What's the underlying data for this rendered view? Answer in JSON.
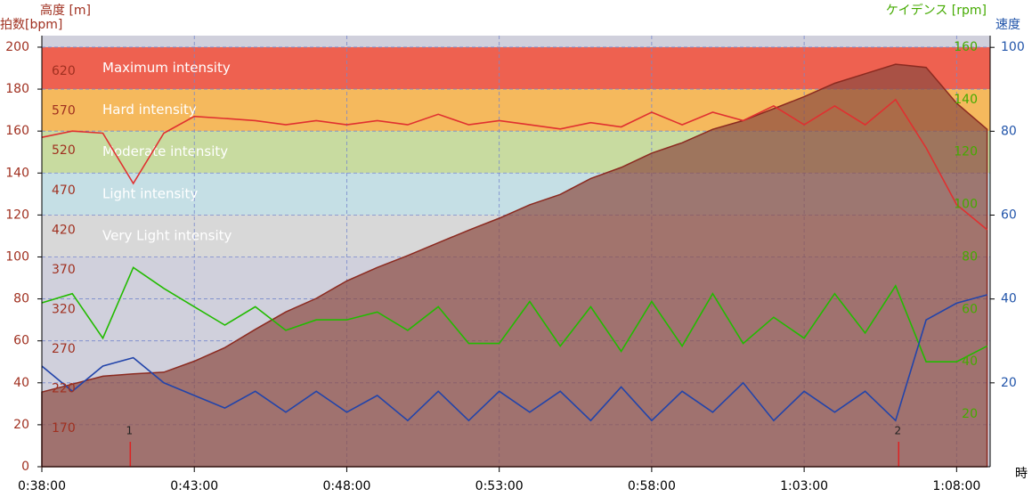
{
  "chart_data": {
    "type": "multi-axis-line",
    "x": [
      38,
      39,
      40,
      41,
      42,
      43,
      44,
      45,
      46,
      47,
      48,
      49,
      50,
      51,
      52,
      53,
      54,
      55,
      56,
      57,
      58,
      59,
      60,
      61,
      62,
      63,
      64,
      65,
      66,
      67,
      68,
      69
    ],
    "xlim": [
      38,
      69.1
    ],
    "xticks": [
      {
        "value": 38,
        "label": "0:38:00"
      },
      {
        "value": 43,
        "label": "0:43:00"
      },
      {
        "value": 48,
        "label": "0:48:00"
      },
      {
        "value": 53,
        "label": "0:53:00"
      },
      {
        "value": 58,
        "label": "0:58:00"
      },
      {
        "value": 63,
        "label": "1:03:00"
      },
      {
        "value": 68,
        "label": "1:08:00"
      }
    ],
    "xlabel": "時",
    "ylabel": "拍数[bpm]",
    "ylim": [
      0,
      205.5
    ],
    "yticks": [
      0,
      20,
      40,
      60,
      80,
      100,
      120,
      140,
      160,
      180,
      200
    ],
    "y2label": "高度 [m]",
    "y2lim": [
      122,
      665
    ],
    "y2ticks": [
      170,
      220,
      270,
      320,
      370,
      420,
      470,
      520,
      570,
      620
    ],
    "y3label": "ケイデンス [rpm]",
    "y3lim": [
      0,
      164.4
    ],
    "y3ticks": [
      20,
      40,
      60,
      80,
      100,
      120,
      140,
      160
    ],
    "y4label": "速度",
    "y4lim": [
      0,
      102.8
    ],
    "y4ticks": [
      20,
      40,
      60,
      80,
      100
    ],
    "grid": true,
    "zones": [
      {
        "name": "Maximum intensity",
        "from": 180,
        "to": 200,
        "color": "#ee6150"
      },
      {
        "name": "Hard intensity",
        "from": 160,
        "to": 180,
        "color": "#f5b95d"
      },
      {
        "name": "Moderate intensity",
        "from": 140,
        "to": 160,
        "color": "#c8dba0"
      },
      {
        "name": "Light intensity",
        "from": 120,
        "to": 140,
        "color": "#c5dfe5"
      },
      {
        "name": "Very Light intensity",
        "from": 100,
        "to": 120,
        "color": "#d8d8d8"
      }
    ],
    "markers": [
      {
        "x": 40.9,
        "label": "1"
      },
      {
        "x": 66.1,
        "label": "2"
      }
    ],
    "series": [
      {
        "axis": "y2",
        "color": "#8b2a20",
        "fill": true,
        "values": [
          216,
          226,
          236,
          239,
          241,
          255,
          272,
          295,
          317,
          334,
          356,
          373,
          388,
          404,
          420,
          435,
          452,
          465,
          485,
          499,
          517,
          530,
          547,
          558,
          573,
          588,
          605,
          617,
          629,
          625,
          580,
          547
        ]
      },
      {
        "axis": "y",
        "color": "#e03030",
        "values": [
          157,
          160,
          159,
          135,
          159,
          167,
          166,
          165,
          163,
          165,
          163,
          165,
          163,
          168,
          163,
          165,
          163,
          161,
          164,
          162,
          169,
          163,
          169,
          165,
          172,
          163,
          172,
          163,
          175,
          152,
          125,
          113
        ]
      },
      {
        "axis": "y3",
        "color": "#22bb00",
        "values": [
          62.5,
          66,
          49,
          76,
          68,
          61,
          54,
          61,
          52,
          56,
          56,
          59,
          52,
          61,
          47,
          47,
          63,
          46,
          61,
          44,
          63,
          46,
          66,
          47,
          57,
          49,
          66,
          51,
          69,
          40,
          40,
          46
        ]
      },
      {
        "axis": "y4",
        "color": "#2244aa",
        "values": [
          24,
          18,
          24,
          26,
          20,
          17,
          14,
          18,
          13,
          18,
          13,
          17,
          11,
          18,
          11,
          18,
          13,
          18,
          11,
          19,
          11,
          18,
          13,
          20,
          11,
          18,
          13,
          18,
          11,
          35,
          39,
          41
        ]
      }
    ]
  }
}
